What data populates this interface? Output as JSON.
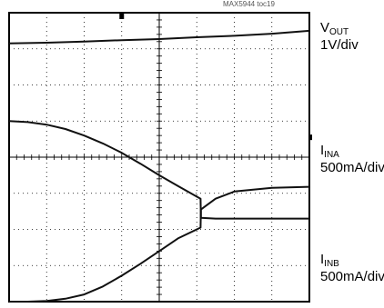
{
  "figure_id": "MAX5944 toc19",
  "channels": [
    {
      "label_main": "V",
      "label_sub": "OUT",
      "scale": "1V/div"
    },
    {
      "label_main": "I",
      "label_sub": "INA",
      "scale": "500mA/div"
    },
    {
      "label_main": "I",
      "label_sub": "INB",
      "scale": "500mA/div"
    }
  ],
  "chart_data": {
    "type": "line",
    "title": "",
    "xlabel": "",
    "ylabel": "",
    "grid": true,
    "x_divisions": 8,
    "y_divisions": 8,
    "xlim": [
      0,
      8
    ],
    "ylim": [
      0,
      8
    ],
    "series": [
      {
        "name": "VOUT",
        "x": [
          0,
          1,
          2,
          3,
          4,
          5,
          6,
          7,
          8
        ],
        "values": [
          7.15,
          7.17,
          7.2,
          7.24,
          7.27,
          7.32,
          7.36,
          7.42,
          7.5
        ]
      },
      {
        "name": "IINA",
        "x": [
          0,
          0.5,
          1,
          1.5,
          2,
          2.5,
          3,
          3.5,
          4,
          4.5,
          5.1,
          5.11,
          5.5,
          6,
          7,
          8
        ],
        "values": [
          5.0,
          4.97,
          4.9,
          4.78,
          4.6,
          4.38,
          4.12,
          3.82,
          3.5,
          3.2,
          2.85,
          2.32,
          2.3,
          2.3,
          2.3,
          2.3
        ]
      },
      {
        "name": "IINB",
        "x": [
          0,
          0.5,
          1,
          1.5,
          2,
          2.5,
          3,
          3.5,
          4,
          4.5,
          5.1,
          5.11,
          5.5,
          6,
          7,
          8
        ],
        "values": [
          0.0,
          0.0,
          0.02,
          0.08,
          0.2,
          0.42,
          0.72,
          1.05,
          1.4,
          1.75,
          2.05,
          2.55,
          2.85,
          3.05,
          3.15,
          3.18
        ]
      }
    ],
    "markers": [
      {
        "name": "trigger-position-marker",
        "x": 3.0
      },
      {
        "name": "ground-reference-marker",
        "y": 4.55
      }
    ]
  }
}
